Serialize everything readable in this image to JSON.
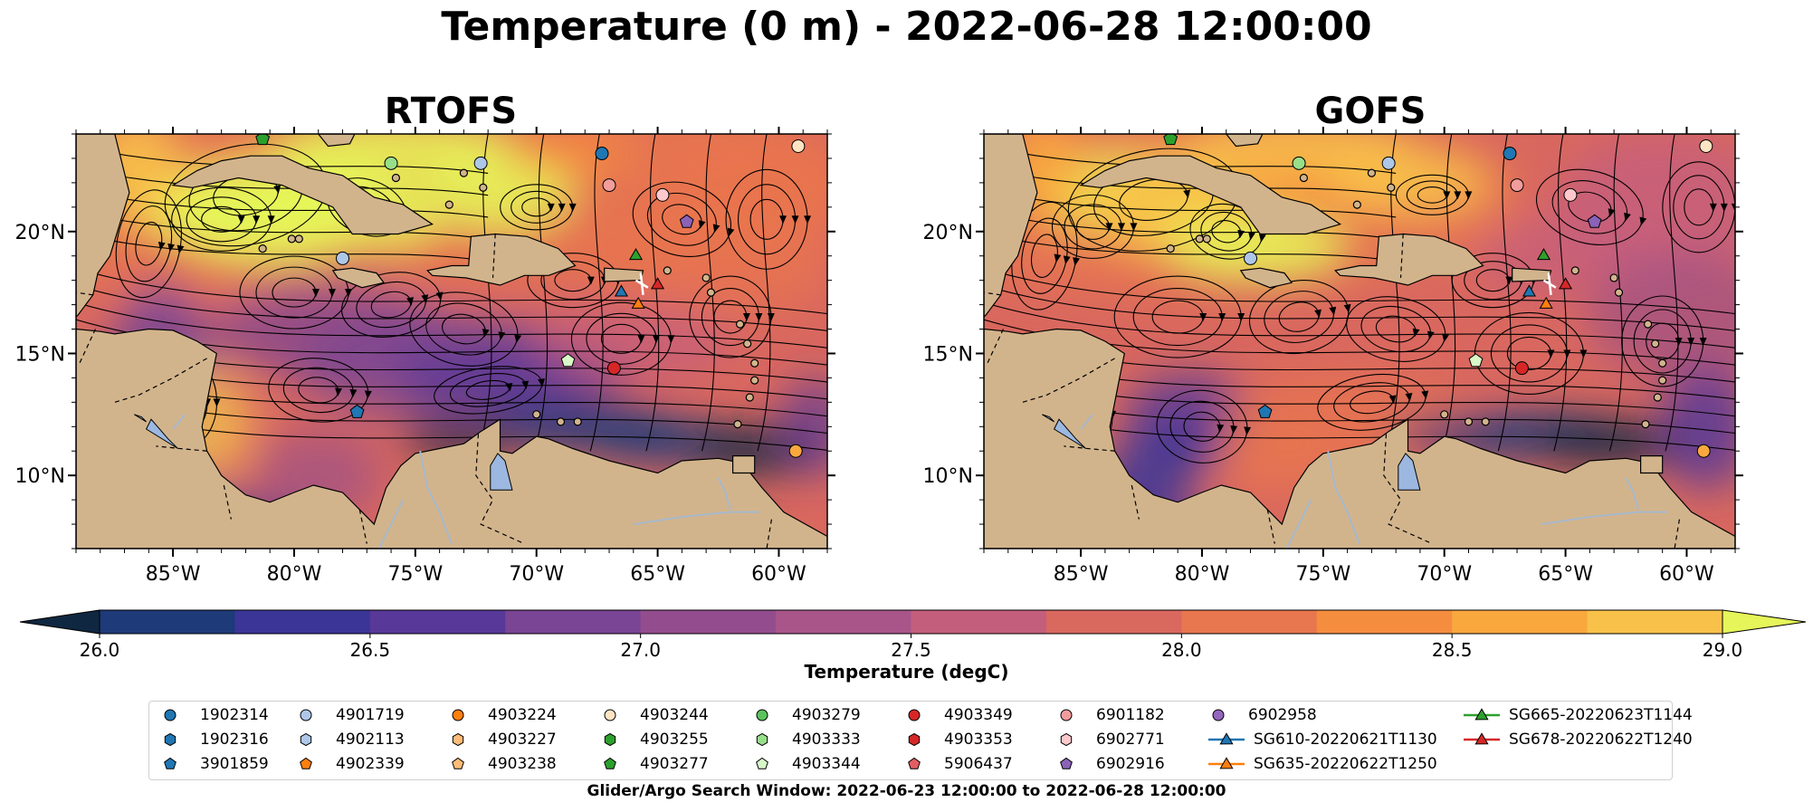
{
  "title": "Temperature (0 m) - 2022-06-28 12:00:00",
  "panels": [
    {
      "title": "RTOFS"
    },
    {
      "title": "GOFS"
    }
  ],
  "map": {
    "lon_range": [
      -89,
      -58
    ],
    "lat_range": [
      7,
      24
    ],
    "lon_ticks": [
      "85°W",
      "80°W",
      "75°W",
      "70°W",
      "65°W",
      "60°W"
    ],
    "lat_ticks": [
      "20°N",
      "15°N",
      "10°N"
    ],
    "land_color": "#d2b48c",
    "lake_color": "#9cb8e0",
    "river_color": "#a7b8cc"
  },
  "colorbar": {
    "label": "Temperature (degC)",
    "ticks": [
      "26.0",
      "26.5",
      "27.0",
      "27.5",
      "28.0",
      "28.5",
      "29.0"
    ],
    "min": 26.0,
    "max": 29.0,
    "step": 0.25,
    "extend": "both",
    "colors": [
      "#0f2740",
      "#1e3a78",
      "#3b3597",
      "#583898",
      "#7a4594",
      "#934d8e",
      "#a9558a",
      "#c45e7d",
      "#d9685f",
      "#e8764f",
      "#f58d3f",
      "#f9a83e",
      "#f8c24a",
      "#e6f559"
    ]
  },
  "legend": {
    "items": [
      {
        "label": "1902314",
        "marker": "circle",
        "color": "#1f77b4"
      },
      {
        "label": "1902316",
        "marker": "hexagon",
        "color": "#1f77b4"
      },
      {
        "label": "3901859",
        "marker": "pentagon",
        "color": "#1f77b4"
      },
      {
        "label": "4901719",
        "marker": "circle",
        "color": "#aec7e8"
      },
      {
        "label": "4902113",
        "marker": "hexagon",
        "color": "#aec7e8"
      },
      {
        "label": "4902339",
        "marker": "pentagon",
        "color": "#ff7f0e"
      },
      {
        "label": "4903224",
        "marker": "circle",
        "color": "#ff7f0e"
      },
      {
        "label": "4903227",
        "marker": "hexagon",
        "color": "#ffbb78"
      },
      {
        "label": "4903238",
        "marker": "pentagon",
        "color": "#ffbb78"
      },
      {
        "label": "4903244",
        "marker": "circle",
        "color": "#ffe4c4"
      },
      {
        "label": "4903255",
        "marker": "hexagon",
        "color": "#2ca02c"
      },
      {
        "label": "4903277",
        "marker": "pentagon",
        "color": "#2ca02c"
      },
      {
        "label": "4903279",
        "marker": "circle",
        "color": "#5cc35c"
      },
      {
        "label": "4903333",
        "marker": "hexagon",
        "color": "#98df8a"
      },
      {
        "label": "4903344",
        "marker": "pentagon",
        "color": "#d8f8c8"
      },
      {
        "label": "4903349",
        "marker": "circle",
        "color": "#d62728"
      },
      {
        "label": "4903353",
        "marker": "hexagon",
        "color": "#d62728"
      },
      {
        "label": "5906437",
        "marker": "pentagon",
        "color": "#e25c63"
      },
      {
        "label": "6901182",
        "marker": "circle",
        "color": "#f29c9c"
      },
      {
        "label": "6902771",
        "marker": "hexagon",
        "color": "#ffc8cc"
      },
      {
        "label": "6902916",
        "marker": "pentagon",
        "color": "#8a62b8"
      },
      {
        "label": "6902958",
        "marker": "circle",
        "color": "#9467bd"
      },
      {
        "label": "SG610-20220621T1130",
        "marker": "triangle-line",
        "color": "#1f77b4"
      },
      {
        "label": "SG635-20220622T1250",
        "marker": "triangle-line",
        "color": "#ff7f0e"
      },
      {
        "label": "SG665-20220623T1144",
        "marker": "triangle-line",
        "color": "#2ca02c"
      },
      {
        "label": "SG678-20220622T1240",
        "marker": "triangle-line",
        "color": "#d62728"
      }
    ],
    "caption": "Glider/Argo Search Window: 2022-06-23 12:00:00 to 2022-06-28 12:00:00"
  }
}
